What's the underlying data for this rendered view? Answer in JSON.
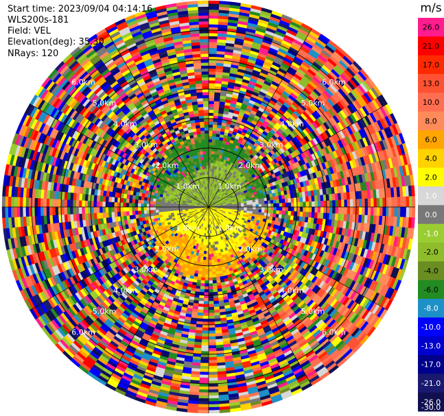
{
  "header": {
    "start_time": "Start time: 2023/09/04 04:14:16",
    "instrument": "WLS200s-181",
    "field": "Field: VEL",
    "elevation": "Elevation(deg): 35.30",
    "nrays": "NRays: 120"
  },
  "chart_data": {
    "type": "heatmap",
    "projection": "polar-ppi",
    "field": "VEL",
    "elevation_deg": 35.3,
    "n_rays": 120,
    "range_rings_km": [
      1,
      2,
      3,
      4,
      5,
      6
    ],
    "range_ring_labels": [
      "1.0km",
      "2.0km",
      "3.0km",
      "4.0km",
      "5.0km",
      "6.0km"
    ],
    "max_range_km": 7,
    "colorbar": {
      "unit": "m/s",
      "ticks": [
        "26.0",
        "21.0",
        "17.0",
        "13.0",
        "10.0",
        "8.0",
        "6.0",
        "4.0",
        "2.0",
        "1.0",
        "0.0",
        "-1.0",
        "-2.0",
        "-4.0",
        "-6.0",
        "-8.0",
        "-10.0",
        "-13.0",
        "-17.0",
        "-21.0",
        "-26.0",
        "-30.0"
      ],
      "colors": [
        "#ff1c8c",
        "#ff0000",
        "#ff2a00",
        "#ff5232",
        "#ff6e50",
        "#ff8a5a",
        "#ffa500",
        "#ffd200",
        "#ffff00",
        "#d7d7d7",
        "#787878",
        "#9acd32",
        "#8fbc2a",
        "#6b8e23",
        "#228b22",
        "#1e90c8",
        "#0000ff",
        "#0000cd",
        "#00008b",
        "#191970",
        "#101050"
      ]
    },
    "near_field_pattern": [
      {
        "from_km": 0.0,
        "to_km": 1.4,
        "north": "green/gray (-4 to 0 m/s)",
        "south": "yellow (1 to 4 m/s)"
      },
      {
        "from_km": 1.4,
        "to_km": 2.2,
        "north": "green (-6 to -2 m/s)",
        "south": "orange (4 to 6 m/s)"
      },
      {
        "from_km": 2.2,
        "to_km": 7.0,
        "north": "noise",
        "south": "noise"
      }
    ]
  },
  "colors": {
    "ring": "#000000",
    "background": "#ffffff",
    "ring_label": "#ffffff"
  }
}
